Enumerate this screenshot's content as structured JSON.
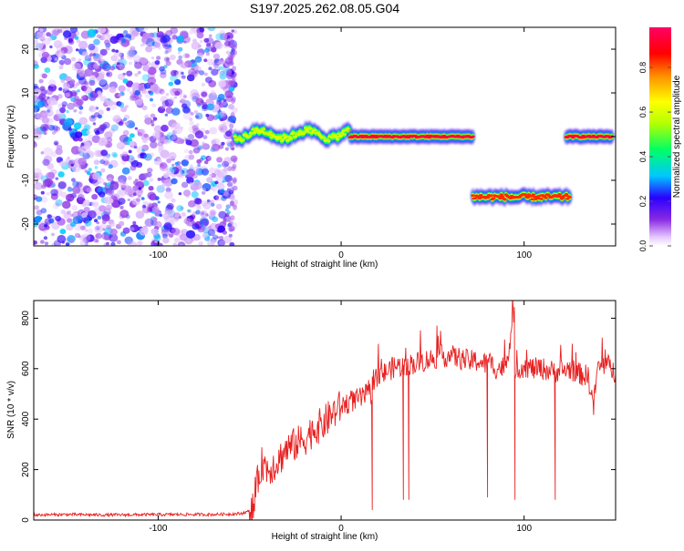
{
  "figure": {
    "title": "S197.2025.262.08.05.G04"
  },
  "chart_data": [
    {
      "type": "heatmap",
      "xlabel": "Height of straight line (km)",
      "ylabel": "Frequency (Hz)",
      "xlim": [
        -168,
        150
      ],
      "ylim": [
        -25,
        25
      ],
      "xticks": [
        -100,
        0,
        100
      ],
      "yticks": [
        -20,
        -10,
        0,
        10,
        20
      ],
      "grid": false,
      "colorbar": {
        "label": "Normalized spectral amplitude",
        "range": [
          0,
          0.98
        ],
        "ticks": [
          0.0,
          0.2,
          0.4,
          0.6,
          0.8
        ],
        "tick_labels": [
          "0.0",
          "0.2",
          "0.4",
          "0.6",
          "0.8"
        ],
        "colormap": [
          "#ffffff",
          "#e6c8ff",
          "#8a2be2",
          "#2a00ff",
          "#00c8ff",
          "#00ff66",
          "#b4ff00",
          "#ffff00",
          "#ff8c00",
          "#ff0000",
          "#ff0066"
        ]
      },
      "features": [
        {
          "kind": "noise-field",
          "x": [
            -168,
            -58
          ],
          "y": [
            -25,
            25
          ],
          "amplitude": [
            0.0,
            0.3
          ]
        },
        {
          "kind": "ridge",
          "x": [
            -58,
            5
          ],
          "y_center": 0.5,
          "y_jitter": 1.5,
          "amplitude": 0.6
        },
        {
          "kind": "ridge",
          "x": [
            5,
            72
          ],
          "y_center": 0,
          "y_jitter": 0.2,
          "amplitude": 0.95
        },
        {
          "kind": "ridge",
          "x": [
            72,
            125
          ],
          "y_center": -13.8,
          "y_jitter": 0.6,
          "amplitude": 0.85
        },
        {
          "kind": "ridge",
          "x": [
            123,
            148
          ],
          "y_center": 0,
          "y_jitter": 0.2,
          "amplitude": 0.95
        }
      ]
    },
    {
      "type": "line",
      "xlabel": "Height of straight line (km)",
      "ylabel": "SNR (10 * v/v)",
      "xlim": [
        -168,
        150
      ],
      "ylim": [
        0,
        870
      ],
      "xticks": [
        -100,
        0,
        100
      ],
      "yticks": [
        0,
        200,
        400,
        600,
        800
      ],
      "grid": false,
      "series": [
        {
          "color": "#e82020",
          "x": [
            -168,
            -150,
            -130,
            -110,
            -90,
            -70,
            -55,
            -48,
            -45,
            -43,
            -40,
            -35,
            -30,
            -25,
            -20,
            -15,
            -10,
            -5,
            0,
            5,
            10,
            15,
            17,
            20,
            25,
            30,
            34,
            35,
            37,
            40,
            45,
            50,
            55,
            60,
            65,
            70,
            75,
            78,
            80,
            82,
            85,
            90,
            94,
            95,
            97,
            100,
            105,
            110,
            115,
            117,
            120,
            125,
            130,
            135,
            138,
            140,
            145,
            150
          ],
          "y": [
            20,
            22,
            20,
            21,
            22,
            22,
            25,
            40,
            180,
            230,
            200,
            230,
            280,
            300,
            320,
            360,
            380,
            420,
            450,
            470,
            480,
            500,
            40,
            560,
            590,
            610,
            80,
            600,
            80,
            620,
            630,
            640,
            650,
            650,
            640,
            630,
            630,
            620,
            90,
            620,
            600,
            610,
            800,
            80,
            600,
            610,
            600,
            600,
            590,
            80,
            590,
            600,
            580,
            570,
            450,
            600,
            620,
            580
          ],
          "spikes": [
            {
              "x": 17,
              "y": 40
            },
            {
              "x": 34,
              "y": 80
            },
            {
              "x": 37,
              "y": 80
            },
            {
              "x": 80,
              "y": 90
            },
            {
              "x": 95,
              "y": 80
            },
            {
              "x": 117,
              "y": 80
            }
          ]
        }
      ]
    }
  ]
}
